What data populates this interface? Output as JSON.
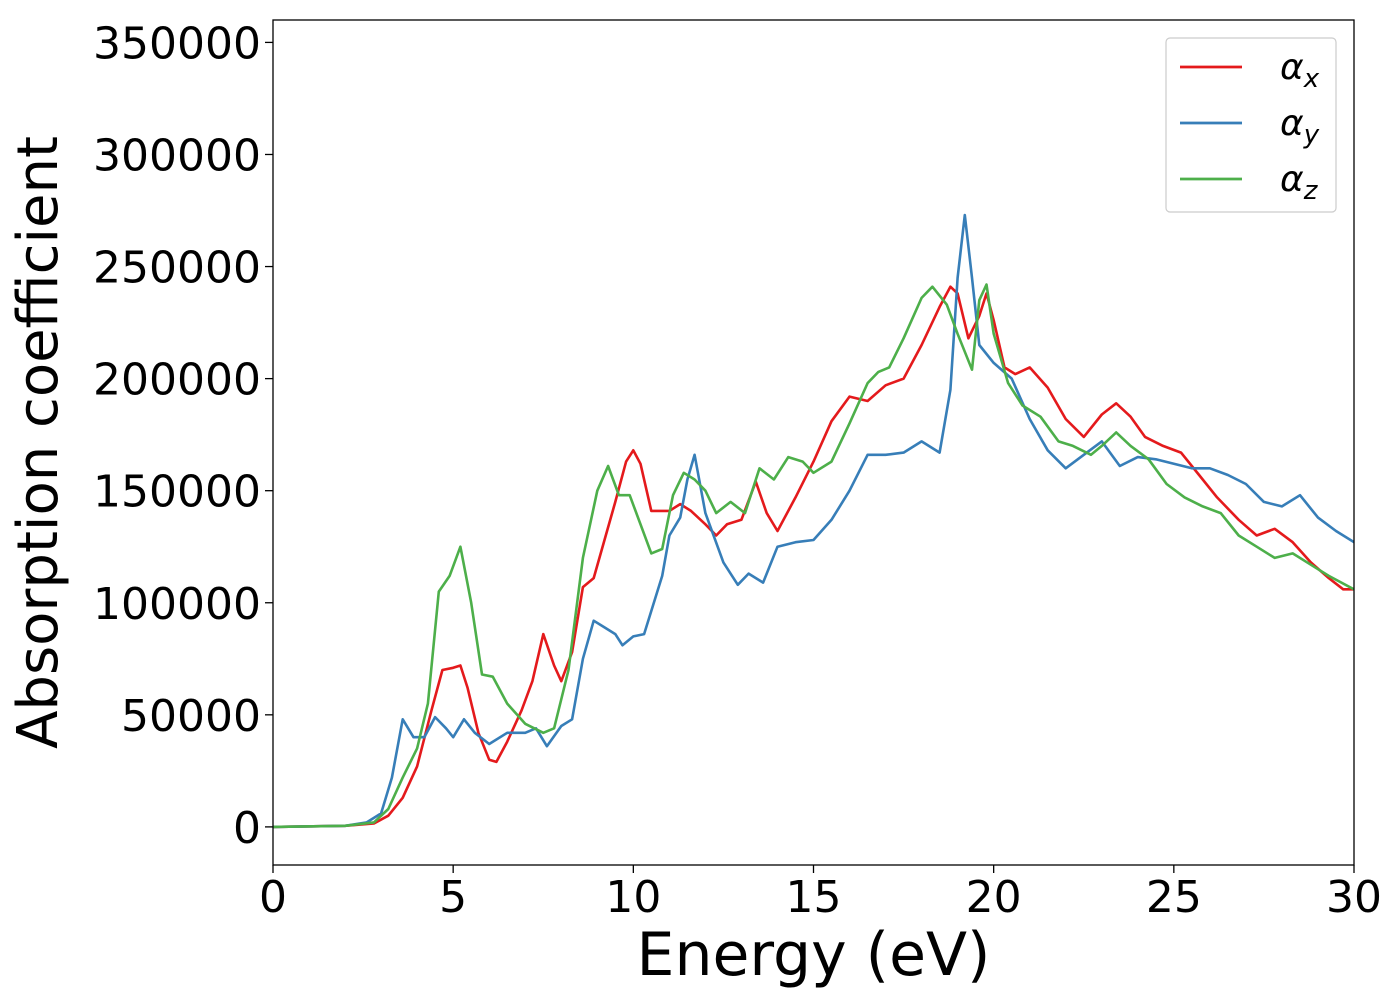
{
  "chart_data": {
    "type": "line",
    "title": "",
    "xlabel": "Energy (eV)",
    "ylabel": "Absorption coefficient",
    "xlim": [
      0,
      30
    ],
    "ylim": [
      -17000,
      360000
    ],
    "x_ticks": [
      0,
      5,
      10,
      15,
      20,
      25,
      30
    ],
    "x_tick_labels": [
      "0",
      "5",
      "10",
      "15",
      "20",
      "25",
      "30"
    ],
    "y_ticks": [
      0,
      50000,
      100000,
      150000,
      200000,
      250000,
      300000,
      350000
    ],
    "y_tick_labels": [
      "0",
      "50000",
      "100000",
      "150000",
      "200000",
      "250000",
      "300000",
      "350000"
    ],
    "grid": false,
    "legend_position": "top-right",
    "series": [
      {
        "name": "αx",
        "legend_base": "α",
        "legend_sub": "x",
        "color": "#e41a1c",
        "points": [
          [
            0,
            0
          ],
          [
            2,
            500
          ],
          [
            2.8,
            1500
          ],
          [
            3.2,
            5000
          ],
          [
            3.6,
            13000
          ],
          [
            4.0,
            27000
          ],
          [
            4.4,
            52000
          ],
          [
            4.7,
            70000
          ],
          [
            5.0,
            71000
          ],
          [
            5.2,
            72000
          ],
          [
            5.4,
            62000
          ],
          [
            5.7,
            42000
          ],
          [
            6.0,
            30000
          ],
          [
            6.2,
            29000
          ],
          [
            6.5,
            38000
          ],
          [
            6.9,
            52000
          ],
          [
            7.2,
            65000
          ],
          [
            7.5,
            86000
          ],
          [
            7.8,
            72000
          ],
          [
            8.0,
            65000
          ],
          [
            8.3,
            78000
          ],
          [
            8.6,
            107000
          ],
          [
            8.9,
            111000
          ],
          [
            9.2,
            128000
          ],
          [
            9.5,
            145000
          ],
          [
            9.8,
            163000
          ],
          [
            10.0,
            168000
          ],
          [
            10.2,
            162000
          ],
          [
            10.5,
            141000
          ],
          [
            11.0,
            141000
          ],
          [
            11.3,
            144000
          ],
          [
            11.6,
            141000
          ],
          [
            12.0,
            135000
          ],
          [
            12.3,
            130000
          ],
          [
            12.6,
            135000
          ],
          [
            13.0,
            137000
          ],
          [
            13.4,
            154000
          ],
          [
            13.7,
            140000
          ],
          [
            14.0,
            132000
          ],
          [
            14.5,
            147000
          ],
          [
            15.0,
            163000
          ],
          [
            15.5,
            181000
          ],
          [
            16.0,
            192000
          ],
          [
            16.5,
            190000
          ],
          [
            17.0,
            197000
          ],
          [
            17.5,
            200000
          ],
          [
            18.0,
            215000
          ],
          [
            18.5,
            232000
          ],
          [
            18.8,
            241000
          ],
          [
            19.0,
            238000
          ],
          [
            19.3,
            218000
          ],
          [
            19.6,
            228000
          ],
          [
            19.8,
            238000
          ],
          [
            20.0,
            226000
          ],
          [
            20.3,
            205000
          ],
          [
            20.6,
            202000
          ],
          [
            21.0,
            205000
          ],
          [
            21.5,
            196000
          ],
          [
            22.0,
            182000
          ],
          [
            22.5,
            174000
          ],
          [
            23.0,
            184000
          ],
          [
            23.4,
            189000
          ],
          [
            23.8,
            183000
          ],
          [
            24.2,
            174000
          ],
          [
            24.7,
            170000
          ],
          [
            25.2,
            167000
          ],
          [
            25.7,
            157000
          ],
          [
            26.2,
            147000
          ],
          [
            26.8,
            137000
          ],
          [
            27.3,
            130000
          ],
          [
            27.8,
            133000
          ],
          [
            28.3,
            127000
          ],
          [
            28.8,
            118000
          ],
          [
            29.3,
            111000
          ],
          [
            29.7,
            106000
          ],
          [
            30,
            106000
          ]
        ]
      },
      {
        "name": "αy",
        "legend_base": "α",
        "legend_sub": "y",
        "color": "#377eb8",
        "points": [
          [
            0,
            0
          ],
          [
            2,
            500
          ],
          [
            2.6,
            2000
          ],
          [
            3.0,
            6000
          ],
          [
            3.3,
            22000
          ],
          [
            3.6,
            48000
          ],
          [
            3.9,
            40000
          ],
          [
            4.2,
            40000
          ],
          [
            4.5,
            49000
          ],
          [
            4.8,
            44000
          ],
          [
            5.0,
            40000
          ],
          [
            5.3,
            48000
          ],
          [
            5.6,
            42000
          ],
          [
            6.0,
            37000
          ],
          [
            6.5,
            42000
          ],
          [
            7.0,
            42000
          ],
          [
            7.3,
            44000
          ],
          [
            7.6,
            36000
          ],
          [
            8.0,
            45000
          ],
          [
            8.3,
            48000
          ],
          [
            8.6,
            75000
          ],
          [
            8.9,
            92000
          ],
          [
            9.2,
            89000
          ],
          [
            9.5,
            86000
          ],
          [
            9.7,
            81000
          ],
          [
            10.0,
            85000
          ],
          [
            10.3,
            86000
          ],
          [
            10.8,
            112000
          ],
          [
            11.0,
            130000
          ],
          [
            11.3,
            138000
          ],
          [
            11.5,
            155000
          ],
          [
            11.7,
            166000
          ],
          [
            12.0,
            140000
          ],
          [
            12.5,
            118000
          ],
          [
            12.9,
            108000
          ],
          [
            13.2,
            113000
          ],
          [
            13.6,
            109000
          ],
          [
            14.0,
            125000
          ],
          [
            14.5,
            127000
          ],
          [
            15.0,
            128000
          ],
          [
            15.5,
            137000
          ],
          [
            16.0,
            150000
          ],
          [
            16.5,
            166000
          ],
          [
            17.0,
            166000
          ],
          [
            17.5,
            167000
          ],
          [
            18.0,
            172000
          ],
          [
            18.5,
            167000
          ],
          [
            18.8,
            195000
          ],
          [
            19.0,
            245000
          ],
          [
            19.2,
            273000
          ],
          [
            19.4,
            245000
          ],
          [
            19.6,
            215000
          ],
          [
            20.0,
            207000
          ],
          [
            20.5,
            200000
          ],
          [
            21.0,
            182000
          ],
          [
            21.5,
            168000
          ],
          [
            22.0,
            160000
          ],
          [
            22.5,
            166000
          ],
          [
            23.0,
            172000
          ],
          [
            23.5,
            161000
          ],
          [
            24.0,
            165000
          ],
          [
            24.5,
            164000
          ],
          [
            25.0,
            162000
          ],
          [
            25.5,
            160000
          ],
          [
            26.0,
            160000
          ],
          [
            26.5,
            157000
          ],
          [
            27.0,
            153000
          ],
          [
            27.5,
            145000
          ],
          [
            28.0,
            143000
          ],
          [
            28.5,
            148000
          ],
          [
            29.0,
            138000
          ],
          [
            29.5,
            132000
          ],
          [
            30,
            127000
          ]
        ]
      },
      {
        "name": "αz",
        "legend_base": "α",
        "legend_sub": "z",
        "color": "#4daf4a",
        "points": [
          [
            0,
            0
          ],
          [
            2,
            500
          ],
          [
            2.8,
            2000
          ],
          [
            3.2,
            8000
          ],
          [
            3.6,
            22000
          ],
          [
            4.0,
            35000
          ],
          [
            4.3,
            55000
          ],
          [
            4.6,
            105000
          ],
          [
            4.9,
            112000
          ],
          [
            5.2,
            125000
          ],
          [
            5.5,
            100000
          ],
          [
            5.8,
            68000
          ],
          [
            6.1,
            67000
          ],
          [
            6.5,
            55000
          ],
          [
            7.0,
            46000
          ],
          [
            7.5,
            42000
          ],
          [
            7.8,
            44000
          ],
          [
            8.2,
            70000
          ],
          [
            8.6,
            120000
          ],
          [
            9.0,
            150000
          ],
          [
            9.3,
            161000
          ],
          [
            9.6,
            148000
          ],
          [
            9.9,
            148000
          ],
          [
            10.2,
            135000
          ],
          [
            10.5,
            122000
          ],
          [
            10.8,
            124000
          ],
          [
            11.1,
            148000
          ],
          [
            11.4,
            158000
          ],
          [
            11.7,
            155000
          ],
          [
            12.0,
            150000
          ],
          [
            12.3,
            140000
          ],
          [
            12.7,
            145000
          ],
          [
            13.1,
            140000
          ],
          [
            13.5,
            160000
          ],
          [
            13.9,
            155000
          ],
          [
            14.3,
            165000
          ],
          [
            14.7,
            163000
          ],
          [
            15.0,
            158000
          ],
          [
            15.5,
            163000
          ],
          [
            16.0,
            180000
          ],
          [
            16.5,
            198000
          ],
          [
            16.8,
            203000
          ],
          [
            17.1,
            205000
          ],
          [
            17.5,
            218000
          ],
          [
            18.0,
            236000
          ],
          [
            18.3,
            241000
          ],
          [
            18.7,
            233000
          ],
          [
            19.0,
            220000
          ],
          [
            19.4,
            204000
          ],
          [
            19.6,
            235000
          ],
          [
            19.8,
            242000
          ],
          [
            20.0,
            220000
          ],
          [
            20.4,
            198000
          ],
          [
            20.8,
            188000
          ],
          [
            21.3,
            183000
          ],
          [
            21.8,
            172000
          ],
          [
            22.2,
            170000
          ],
          [
            22.7,
            166000
          ],
          [
            23.0,
            170000
          ],
          [
            23.4,
            176000
          ],
          [
            23.8,
            170000
          ],
          [
            24.3,
            164000
          ],
          [
            24.8,
            153000
          ],
          [
            25.3,
            147000
          ],
          [
            25.8,
            143000
          ],
          [
            26.3,
            140000
          ],
          [
            26.8,
            130000
          ],
          [
            27.3,
            125000
          ],
          [
            27.8,
            120000
          ],
          [
            28.3,
            122000
          ],
          [
            28.8,
            117000
          ],
          [
            29.3,
            112000
          ],
          [
            30,
            106000
          ]
        ]
      }
    ]
  }
}
